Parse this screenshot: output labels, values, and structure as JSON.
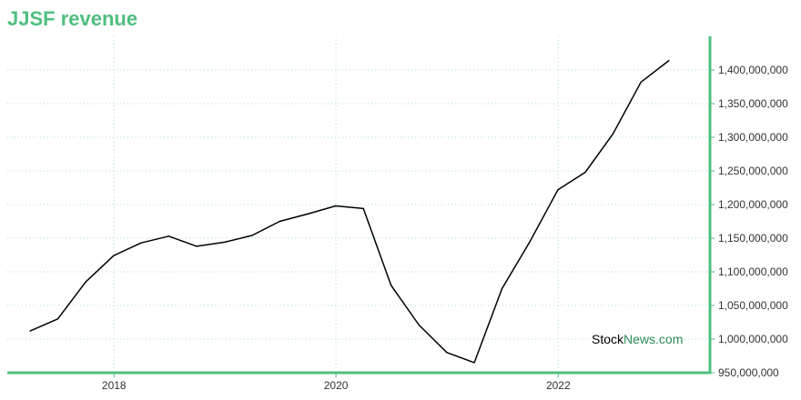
{
  "header": {
    "title": "JJSF revenue"
  },
  "watermark": {
    "part1": "Stock",
    "part2": "News",
    "part3": ".com"
  },
  "colors": {
    "accent": "#4fbf7f",
    "grid": "#aee0cf",
    "line": "#000000",
    "watermark_green": "#2e8b57"
  },
  "chart_data": {
    "type": "line",
    "title": "JJSF revenue",
    "xlabel": "",
    "ylabel": "",
    "grid": true,
    "y_axis_position": "right",
    "ylim": [
      950000000,
      1450000000
    ],
    "xlim": [
      "2017-01-15",
      "2023-05-15"
    ],
    "x_ticks": [
      "2018",
      "2020",
      "2022"
    ],
    "y_ticks": [
      "950,000,000",
      "1,000,000,000",
      "1,050,000,000",
      "1,100,000,000",
      "1,150,000,000",
      "1,200,000,000",
      "1,250,000,000",
      "1,300,000,000",
      "1,350,000,000",
      "1,400,000,000"
    ],
    "series": [
      {
        "x": [
          "2017-03-31",
          "2017-06-30",
          "2017-09-30",
          "2017-12-31",
          "2018-03-31",
          "2018-06-30",
          "2018-09-30",
          "2018-12-31",
          "2019-03-31",
          "2019-06-30",
          "2019-09-30",
          "2019-12-31",
          "2020-03-31",
          "2020-06-30",
          "2020-09-30",
          "2020-12-31",
          "2021-03-31",
          "2021-06-30",
          "2021-09-30",
          "2021-12-31",
          "2022-03-31",
          "2022-06-30",
          "2022-09-30",
          "2022-12-31"
        ],
        "values": [
          1012000000,
          1030000000,
          1085000000,
          1124000000,
          1143000000,
          1153000000,
          1138000000,
          1144000000,
          1154000000,
          1175000000,
          1186000000,
          1198000000,
          1194000000,
          1080000000,
          1021000000,
          980000000,
          965000000,
          1075000000,
          1145000000,
          1222000000,
          1248000000,
          1305000000,
          1382000000,
          1414000000
        ]
      }
    ]
  }
}
